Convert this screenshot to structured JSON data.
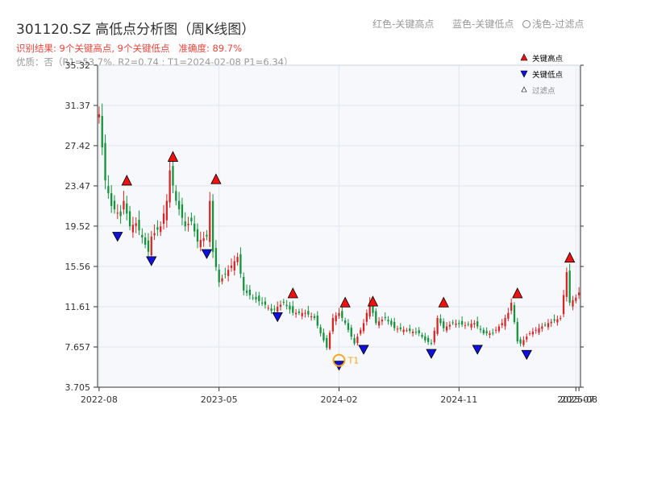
{
  "title": "301120.SZ 高低点分析图（周K线图）",
  "subtitle_result": "识别结果: 9个关键高点, 9个关键低点   准确度: 89.7%",
  "subtitle_quality": "优质：否（R1=53.7%, R2=0.74 ; T1=2024-02-08 P1=6.34）",
  "top_legend": {
    "red": "红色-关键高点",
    "blue": "蓝色-关键低点",
    "light": "浅色-过滤点"
  },
  "colors": {
    "up": "#d62728",
    "down": "#13933a",
    "high_marker": "#ee1111",
    "low_marker": "#1111dd",
    "t1": "#f5a623",
    "plot_bg": "#f6f8fb",
    "grid": "#e3e6eb",
    "axis": "#333333"
  },
  "chart_data": {
    "type": "candlestick",
    "title": "301120.SZ 高低点分析图（周K线图）",
    "y_ticks": [
      "35.32",
      "31.37",
      "27.42",
      "23.47",
      "19.52",
      "15.56",
      "11.61",
      "7.657",
      "3.705"
    ],
    "ylim": [
      3.705,
      35.32
    ],
    "x_ticks": [
      "2022-08",
      "2023-05",
      "2024-02",
      "2024-11",
      "2025-07",
      "2025-08"
    ],
    "x_tick_positions": [
      0,
      39,
      78,
      117,
      155,
      156
    ],
    "n_weeks": 157,
    "legend": {
      "entries": [
        "关键高点",
        "关键低点",
        "过滤点"
      ],
      "placement": "top-right"
    },
    "close_anchors": [
      [
        0,
        30.5
      ],
      [
        2,
        24.0
      ],
      [
        4,
        21.5
      ],
      [
        7,
        20.5
      ],
      [
        8,
        22.0
      ],
      [
        10,
        19.5
      ],
      [
        12,
        19.8
      ],
      [
        16,
        17.0
      ],
      [
        17,
        18.5
      ],
      [
        20,
        19.5
      ],
      [
        22,
        22.0
      ],
      [
        23,
        25.0
      ],
      [
        25,
        22.0
      ],
      [
        28,
        19.5
      ],
      [
        30,
        20.0
      ],
      [
        32,
        18.0
      ],
      [
        35,
        18.5
      ],
      [
        36,
        22.0
      ],
      [
        37,
        17.0
      ],
      [
        39,
        14.0
      ],
      [
        41,
        14.8
      ],
      [
        45,
        16.5
      ],
      [
        47,
        13.2
      ],
      [
        50,
        12.5
      ],
      [
        54,
        11.8
      ],
      [
        56,
        11.2
      ],
      [
        60,
        12.0
      ],
      [
        63,
        11.0
      ],
      [
        67,
        11.0
      ],
      [
        70,
        10.5
      ],
      [
        72,
        9.0
      ],
      [
        74,
        7.6
      ],
      [
        76,
        10.5
      ],
      [
        78,
        11.0
      ],
      [
        80,
        10.0
      ],
      [
        83,
        8.0
      ],
      [
        86,
        10.0
      ],
      [
        88,
        12.0
      ],
      [
        90,
        10.0
      ],
      [
        93,
        10.5
      ],
      [
        96,
        9.5
      ],
      [
        100,
        9.3
      ],
      [
        104,
        9.0
      ],
      [
        106,
        8.3
      ],
      [
        108,
        8.0
      ],
      [
        110,
        10.5
      ],
      [
        112,
        9.5
      ],
      [
        115,
        10.0
      ],
      [
        119,
        9.8
      ],
      [
        122,
        10.0
      ],
      [
        125,
        9.0
      ],
      [
        128,
        9.0
      ],
      [
        131,
        10.0
      ],
      [
        133,
        11.0
      ],
      [
        134,
        12.0
      ],
      [
        136,
        8.2
      ],
      [
        137,
        8.0
      ],
      [
        140,
        9.0
      ],
      [
        143,
        9.5
      ],
      [
        146,
        10.0
      ],
      [
        150,
        10.5
      ],
      [
        152,
        15.0
      ],
      [
        153,
        12.0
      ],
      [
        155,
        12.5
      ],
      [
        156,
        13.0
      ]
    ],
    "key_highs": [
      {
        "week": 9,
        "price": 23.47
      },
      {
        "week": 24,
        "price": 25.8
      },
      {
        "week": 38,
        "price": 23.6
      },
      {
        "week": 63,
        "price": 12.4
      },
      {
        "week": 80,
        "price": 11.5
      },
      {
        "week": 89,
        "price": 11.6
      },
      {
        "week": 112,
        "price": 11.5
      },
      {
        "week": 136,
        "price": 12.4
      },
      {
        "week": 153,
        "price": 15.9
      }
    ],
    "key_lows": [
      {
        "week": 6,
        "price": 19.0
      },
      {
        "week": 17,
        "price": 16.6
      },
      {
        "week": 35,
        "price": 17.3
      },
      {
        "week": 58,
        "price": 11.1
      },
      {
        "week": 78,
        "price": 6.34
      },
      {
        "week": 86,
        "price": 7.9
      },
      {
        "week": 108,
        "price": 7.5
      },
      {
        "week": 123,
        "price": 7.9
      },
      {
        "week": 139,
        "price": 7.4
      }
    ],
    "t1": {
      "label": "T1",
      "week": 78,
      "price": 6.34
    }
  }
}
